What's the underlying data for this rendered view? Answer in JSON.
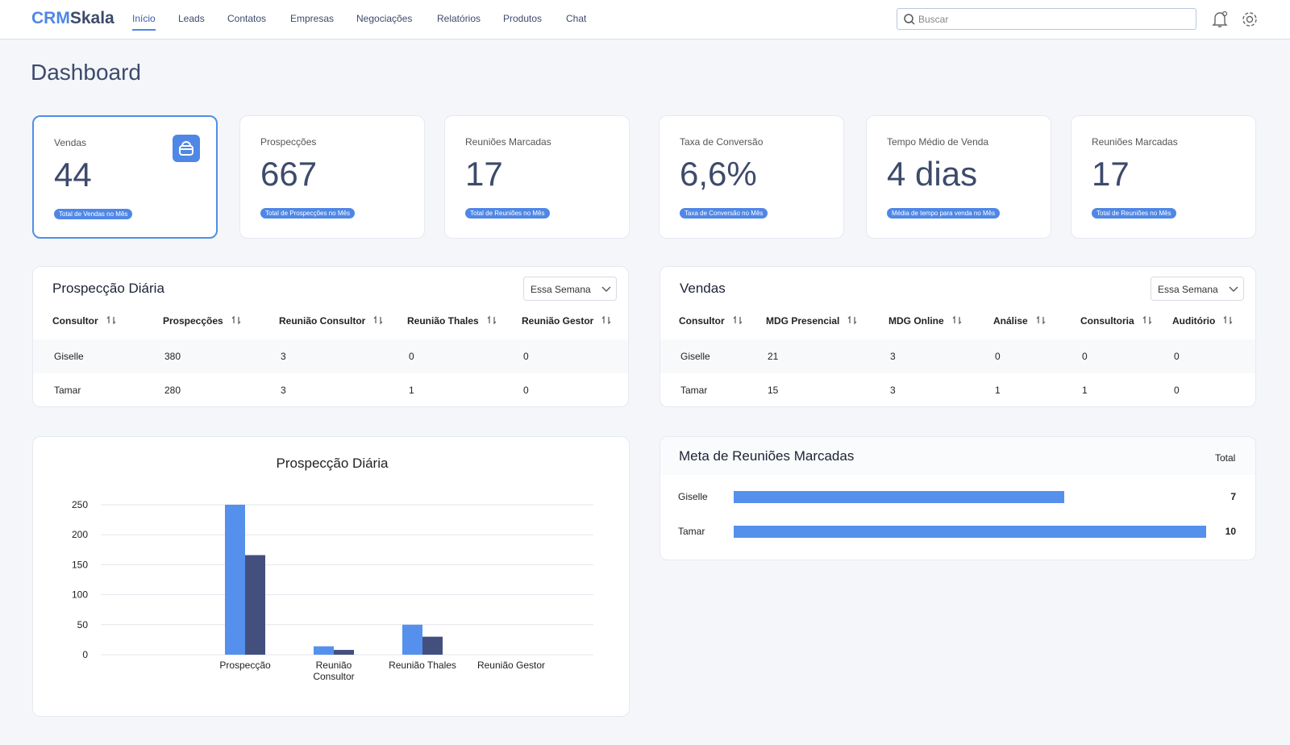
{
  "nav": {
    "logo": {
      "prefix": "CRM",
      "suffix": "Skala"
    },
    "items": [
      "Início",
      "Leads",
      "Contatos",
      "Empresas",
      "Negociações",
      "Relatórios",
      "Produtos",
      "Chat"
    ],
    "search_placeholder": "Buscar"
  },
  "page_title": "Dashboard",
  "cards": [
    {
      "label": "Vendas",
      "value": "44",
      "badge": "Total de Vendas no Mês"
    },
    {
      "label": "Prospecções",
      "value": "667",
      "badge": "Total de Prospecções no Mês"
    },
    {
      "label": "Reuniões Marcadas",
      "value": "17",
      "badge": "Total de Reuniões no Mês"
    },
    {
      "label": "Taxa de Conversão",
      "value": "6,6%",
      "badge": "Taxa de Conversão no Mês"
    },
    {
      "label": "Tempo Médio de Venda",
      "value": "4 dias",
      "badge": "Média de tempo para venda no Mês"
    },
    {
      "label": "Reuniões Marcadas",
      "value": "17",
      "badge": "Total de Reuniões no Mês"
    }
  ],
  "tables": [
    {
      "title": "Prospecção Diária",
      "filter": "Essa Semana",
      "columns": [
        "Consultor",
        "Prospecções",
        "Reunião Consultor",
        "Reunião Thales",
        "Reunião Gestor"
      ],
      "rows": [
        [
          "Giselle",
          "380",
          "3",
          "0",
          "0"
        ],
        [
          "Tamar",
          "280",
          "3",
          "1",
          "0"
        ]
      ]
    },
    {
      "title": "Vendas",
      "filter": "Essa Semana",
      "columns": [
        "Consultor",
        "MDG Presencial",
        "MDG Online",
        "Análise",
        "Consultoria",
        "Auditório"
      ],
      "rows": [
        [
          "Giselle",
          "21",
          "3",
          "0",
          "0",
          "0"
        ],
        [
          "Tamar",
          "15",
          "3",
          "1",
          "1",
          "0"
        ]
      ]
    }
  ],
  "chart_data": {
    "type": "bar",
    "title": "Prospecção Diária",
    "categories": [
      "Prospecção",
      "Reunião Consultor",
      "Reunião Thales",
      "Reunião Gestor"
    ],
    "series": [
      {
        "color": "#5591ec",
        "values": [
          250,
          14,
          50,
          0
        ]
      },
      {
        "color": "#43507e",
        "values": [
          166,
          8,
          30,
          0
        ]
      }
    ],
    "ylim": [
      0,
      250
    ],
    "yticks": [
      0,
      50,
      100,
      150,
      200,
      250
    ],
    "grid": true
  },
  "meta": {
    "title": "Meta de Reuniões Marcadas",
    "total_label": "Total",
    "categories": [
      "Giselle",
      "Tamar"
    ],
    "values": [
      7,
      10
    ],
    "color": "#5591ec",
    "xlim": [
      0,
      10
    ]
  }
}
